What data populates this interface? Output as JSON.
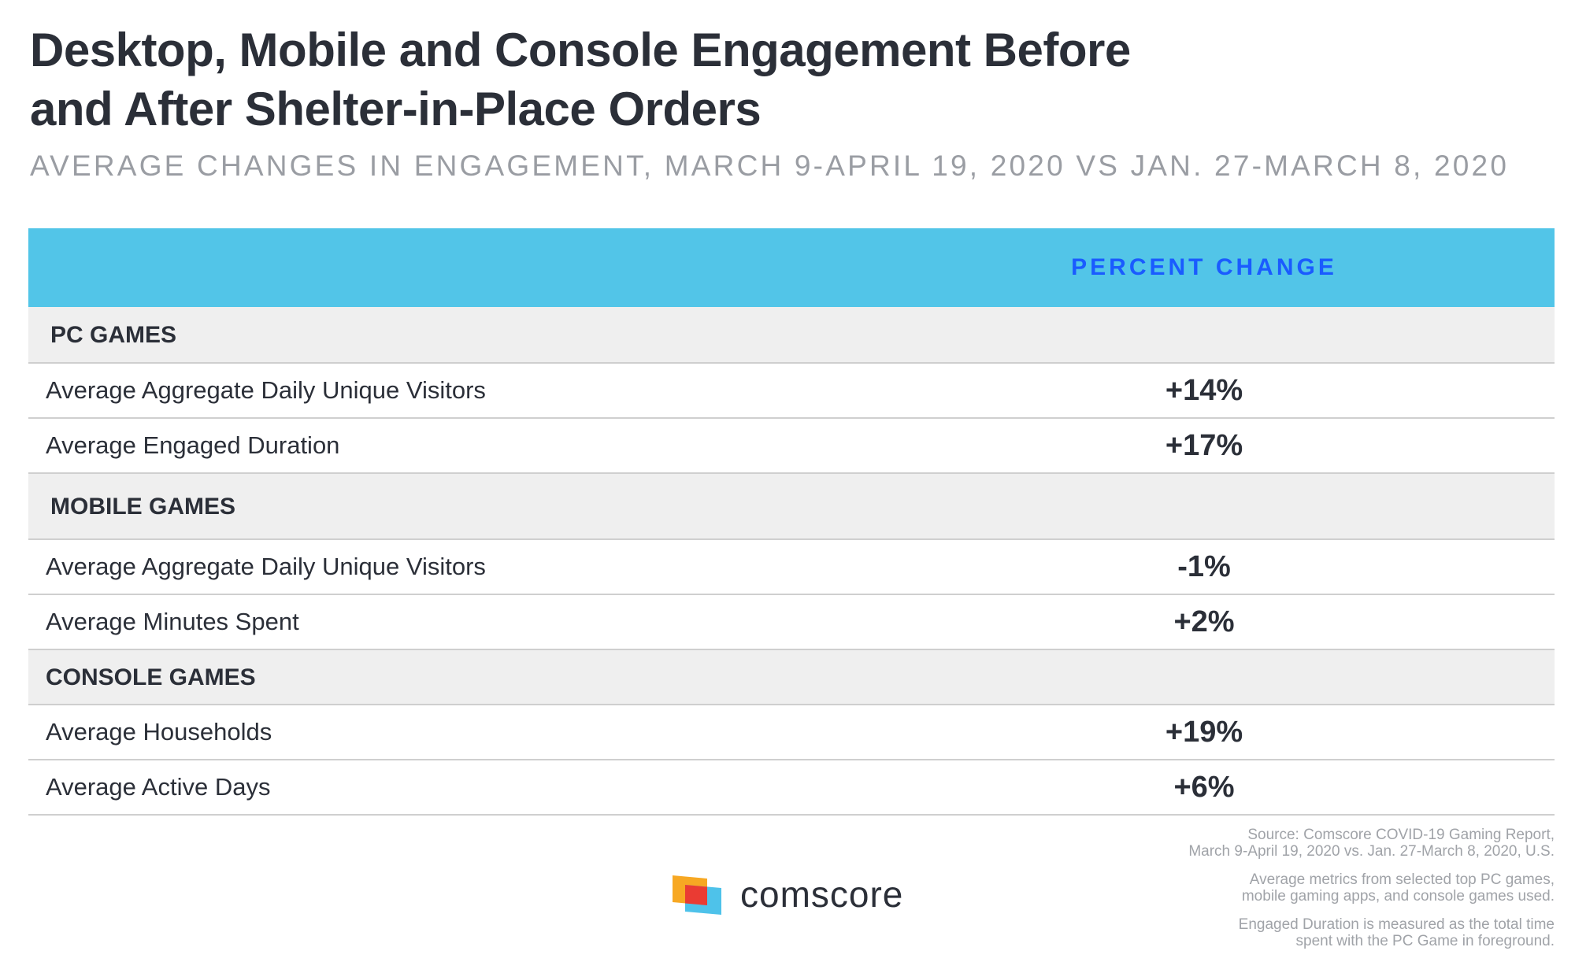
{
  "title": {
    "line1": "Desktop, Mobile and Console Engagement Before",
    "line2": "and After Shelter-in-Place Orders"
  },
  "subtitle": "AVERAGE CHANGES IN ENGAGEMENT, MARCH 9-APRIL 19, 2020 VS JAN. 27-MARCH 8, 2020",
  "colors": {
    "header_bg": "#52c5e8",
    "header_text": "#1a5bff",
    "section_bg": "#efefef"
  },
  "chart_data": {
    "type": "table",
    "title": "Desktop, Mobile and Console Engagement Before and After Shelter-in-Place Orders",
    "column_header": "PERCENT CHANGE",
    "sections": [
      {
        "label": "PC GAMES",
        "rows": [
          {
            "metric": "Average Aggregate Daily Unique Visitors",
            "value": "+14%"
          },
          {
            "metric": "Average Engaged Duration",
            "value": "+17%"
          }
        ]
      },
      {
        "label": "MOBILE GAMES",
        "rows": [
          {
            "metric": "Average Aggregate Daily Unique Visitors",
            "value": "-1%"
          },
          {
            "metric": "Average Minutes Spent",
            "value": "+2%"
          }
        ]
      },
      {
        "label": "CONSOLE GAMES",
        "rows": [
          {
            "metric": "Average Households",
            "value": "+19%"
          },
          {
            "metric": "Average Active Days",
            "value": "+6%"
          }
        ]
      }
    ]
  },
  "footer": {
    "logo_text": "comscore",
    "logo_icon": "comscore-logo-icon",
    "source_line1": "Source: Comscore COVID-19 Gaming Report,",
    "source_line2": "March 9-April 19, 2020 vs. Jan. 27-March 8, 2020, U.S.",
    "note1_line1": "Average metrics from selected top PC games,",
    "note1_line2": "mobile gaming apps, and console games used.",
    "note2_line1": "Engaged Duration is measured as the total time",
    "note2_line2": "spent with the PC Game in foreground."
  }
}
